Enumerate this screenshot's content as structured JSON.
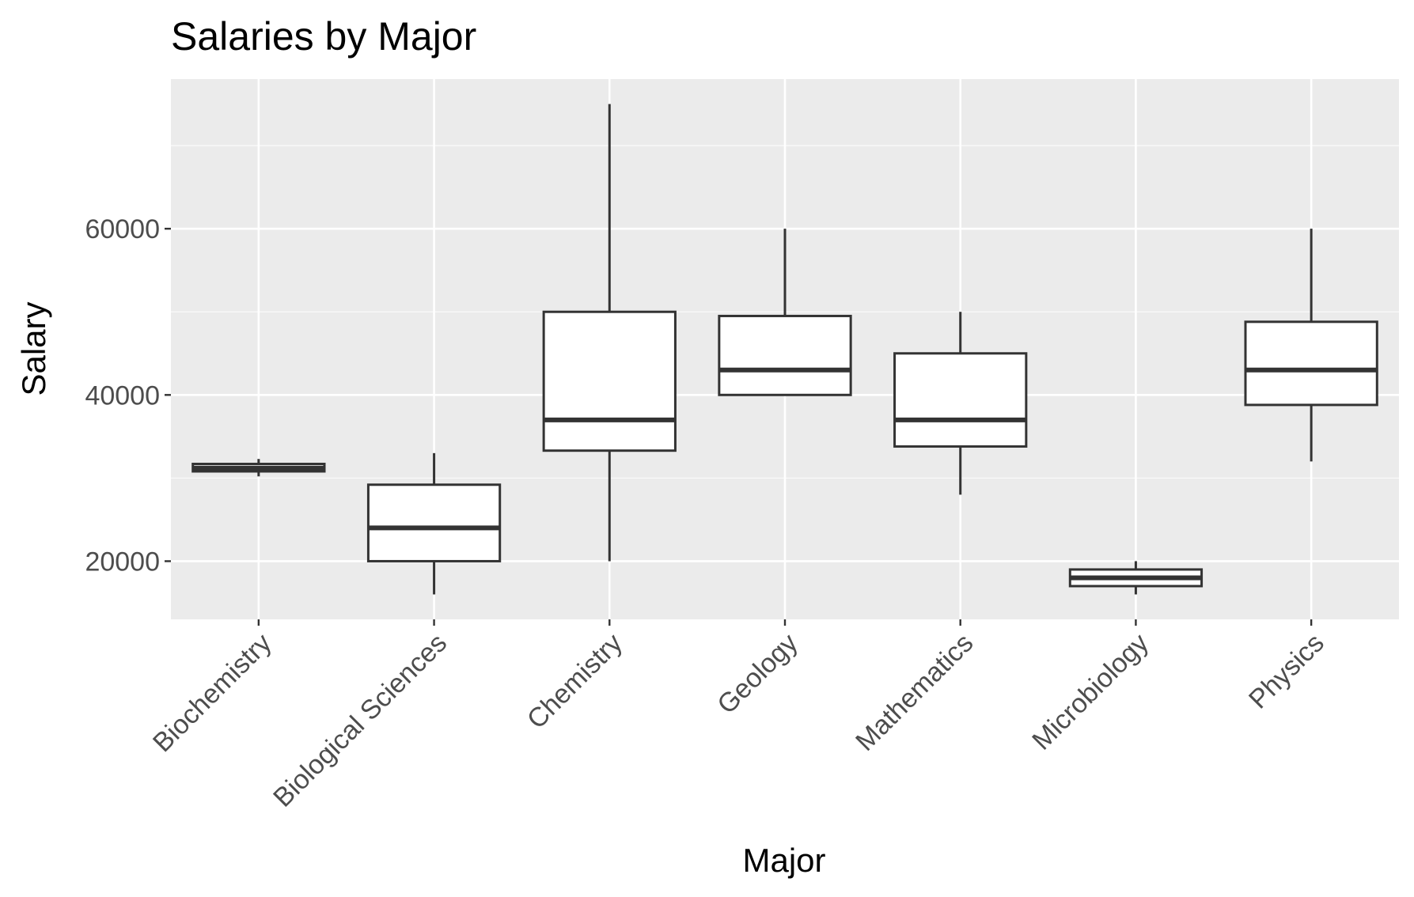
{
  "chart_data": {
    "type": "boxplot",
    "title": "Salaries by Major",
    "xlabel": "Major",
    "ylabel": "Salary",
    "ylim": [
      13000,
      78000
    ],
    "yticks": [
      20000,
      40000,
      60000
    ],
    "grid": true,
    "categories": [
      "Biochemistry",
      "Biological Sciences",
      "Chemistry",
      "Geology",
      "Mathematics",
      "Microbiology",
      "Physics"
    ],
    "boxes": [
      {
        "category": "Biochemistry",
        "whisker_low": 30200,
        "q1": 30800,
        "median": 31200,
        "q3": 31700,
        "whisker_high": 32300
      },
      {
        "category": "Biological Sciences",
        "whisker_low": 16000,
        "q1": 20000,
        "median": 24000,
        "q3": 29200,
        "whisker_high": 33000
      },
      {
        "category": "Chemistry",
        "whisker_low": 20000,
        "q1": 33300,
        "median": 37000,
        "q3": 50000,
        "whisker_high": 75000
      },
      {
        "category": "Geology",
        "whisker_low": 40000,
        "q1": 40000,
        "median": 43000,
        "q3": 49500,
        "whisker_high": 60000
      },
      {
        "category": "Mathematics",
        "whisker_low": 28000,
        "q1": 33800,
        "median": 37000,
        "q3": 45000,
        "whisker_high": 50000
      },
      {
        "category": "Microbiology",
        "whisker_low": 16000,
        "q1": 17000,
        "median": 18000,
        "q3": 19000,
        "whisker_high": 20000
      },
      {
        "category": "Physics",
        "whisker_low": 32000,
        "q1": 38800,
        "median": 43000,
        "q3": 48800,
        "whisker_high": 60000
      }
    ],
    "colors": {
      "panel_background": "#ebebeb",
      "grid_major": "#ffffff",
      "box_fill": "#ffffff",
      "box_stroke": "#333333",
      "tick_label": "#4d4d4d",
      "tick_mark": "#333333"
    }
  }
}
